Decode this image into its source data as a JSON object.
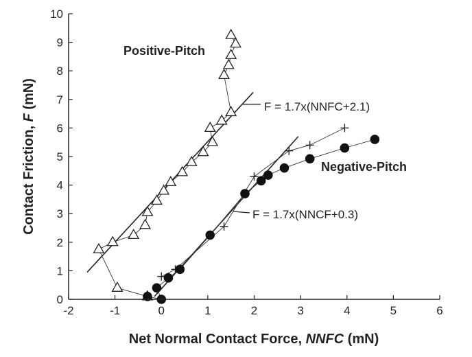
{
  "chart_data": {
    "type": "scatter",
    "title": "",
    "xlabel": "Net Normal Contact Force, NNFC (mN)",
    "xlabel_parts": {
      "pre": "Net Normal Contact Force, ",
      "italic": "NNFC",
      "post": " (mN)"
    },
    "ylabel": "Contact Friction, F (mN)",
    "ylabel_parts": {
      "pre": "Contact Friction, ",
      "italic": "F",
      "post": " (mN)"
    },
    "xlim": [
      -2,
      6
    ],
    "ylim": [
      0,
      10
    ],
    "xticks": [
      -2,
      -1,
      0,
      1,
      2,
      3,
      4,
      5,
      6
    ],
    "yticks": [
      0,
      1,
      2,
      3,
      4,
      5,
      6,
      7,
      8,
      9,
      10
    ],
    "grid": false,
    "legend": "none",
    "series": [
      {
        "name": "Positive-Pitch",
        "marker": "triangle-open",
        "connected": true,
        "points": [
          [
            -0.3,
            0.1
          ],
          [
            -0.95,
            0.4
          ],
          [
            -1.35,
            1.75
          ],
          [
            -1.05,
            2.0
          ],
          [
            -0.6,
            2.25
          ],
          [
            -0.35,
            2.6
          ],
          [
            -0.3,
            3.05
          ],
          [
            -0.1,
            3.45
          ],
          [
            0.05,
            3.8
          ],
          [
            0.2,
            4.1
          ],
          [
            0.45,
            4.45
          ],
          [
            0.65,
            4.8
          ],
          [
            0.9,
            5.15
          ],
          [
            1.1,
            5.5
          ],
          [
            1.05,
            6.0
          ],
          [
            1.3,
            6.25
          ],
          [
            1.5,
            6.55
          ],
          [
            1.35,
            7.85
          ],
          [
            1.45,
            8.2
          ],
          [
            1.5,
            8.55
          ],
          [
            1.6,
            8.95
          ],
          [
            1.5,
            9.25
          ]
        ]
      },
      {
        "name": "",
        "marker": "plus",
        "connected": true,
        "points": [
          [
            0.0,
            0.8
          ],
          [
            0.3,
            1.05
          ],
          [
            1.35,
            2.55
          ],
          [
            2.0,
            4.3
          ],
          [
            2.75,
            5.2
          ],
          [
            3.2,
            5.4
          ],
          [
            3.95,
            6.0
          ]
        ]
      },
      {
        "name": "Negative-Pitch",
        "marker": "circle-filled",
        "connected": true,
        "points": [
          [
            -0.3,
            0.1
          ],
          [
            0.0,
            0.0
          ],
          [
            -0.1,
            0.4
          ],
          [
            0.15,
            0.75
          ],
          [
            0.4,
            1.05
          ],
          [
            1.05,
            2.25
          ],
          [
            1.8,
            3.7
          ],
          [
            2.15,
            4.15
          ],
          [
            2.3,
            4.35
          ],
          [
            2.65,
            4.6
          ],
          [
            3.2,
            4.92
          ],
          [
            3.95,
            5.3
          ],
          [
            4.6,
            5.6
          ]
        ]
      }
    ],
    "fit_lines": [
      {
        "label": "F = 1.7x(NNFC+2.1)",
        "x": [
          -1.6,
          1.98
        ],
        "y": [
          0.95,
          7.25
        ]
      },
      {
        "label": "F = 1.7x(NNCF+0.3)",
        "x": [
          -0.15,
          2.95
        ],
        "y": [
          0.1,
          5.7
        ]
      }
    ],
    "annotations": [
      "Positive-Pitch",
      "Negative-Pitch",
      "F = 1.7x(NNFC+2.1)",
      "F = 1.7x(NNCF+0.3)"
    ]
  }
}
